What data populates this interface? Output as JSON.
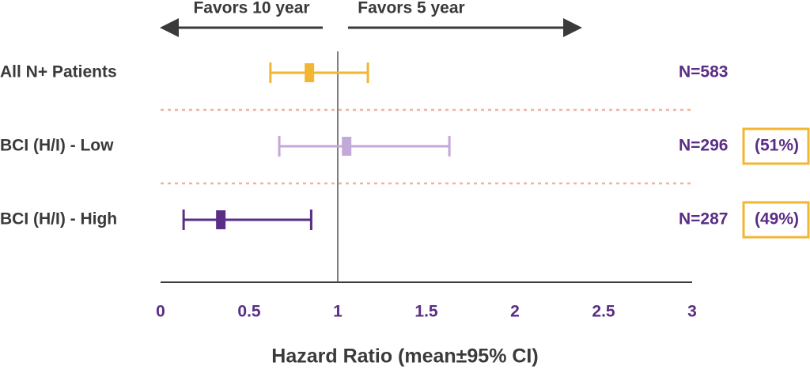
{
  "chart_data": {
    "type": "forest",
    "xlabel": "Hazard Ratio (mean±95% CI)",
    "annotation_left": "Favors 10 year",
    "annotation_right": "Favors 5 year",
    "categories": [
      "All N+ Patients",
      "BCI (H/I) - Low",
      "BCI (H/I) - High"
    ],
    "values": [
      0.84,
      1.05,
      0.34
    ],
    "lower": [
      0.62,
      0.67,
      0.13
    ],
    "upper": [
      1.17,
      1.63,
      0.85
    ],
    "colors": [
      "#f2b632",
      "#c3a9d9",
      "#5a2d86"
    ],
    "n_labels": [
      "N=583",
      "N=296",
      "N=287"
    ],
    "share_labels": [
      null,
      "(51%)",
      "(49%)"
    ],
    "xlim": [
      0,
      3
    ],
    "xticks": [
      0,
      0.5,
      1,
      1.5,
      2,
      2.5,
      3
    ],
    "reference_line": 1
  }
}
